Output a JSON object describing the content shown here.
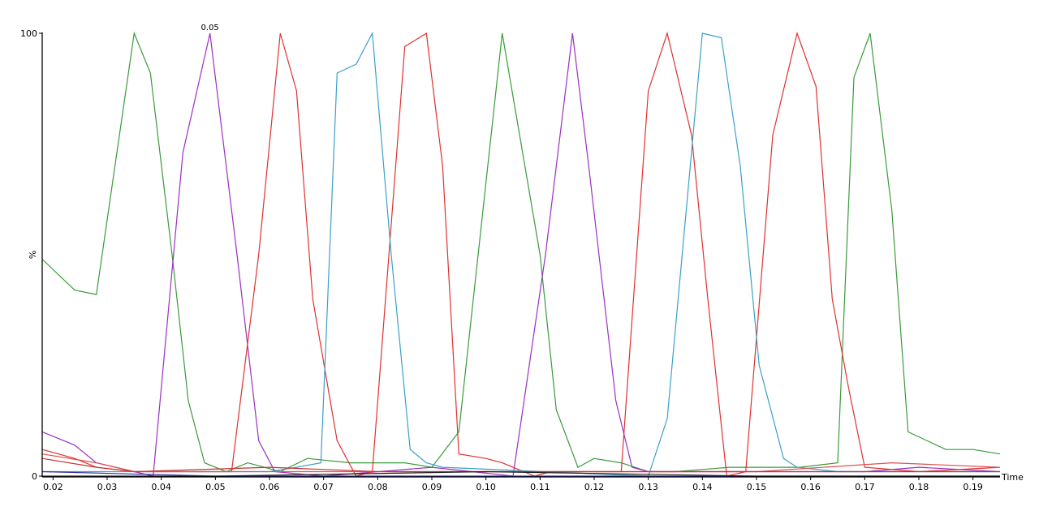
{
  "chart_data": {
    "type": "line",
    "title": "",
    "xlabel": "Time",
    "ylabel": "%",
    "xlim": [
      0.018,
      0.195
    ],
    "ylim": [
      0,
      100
    ],
    "y_ticks": [
      "0",
      "100"
    ],
    "x_ticks": [
      0.02,
      0.03,
      0.04,
      0.05,
      0.06,
      0.07,
      0.08,
      0.09,
      0.1,
      0.11,
      0.12,
      0.13,
      0.14,
      0.15,
      0.16,
      0.17,
      0.18,
      0.19
    ],
    "x_tick_labels": [
      "0.02",
      "0.03",
      "0.04",
      "0.05",
      "0.06",
      "0.07",
      "0.08",
      "0.09",
      "0.10",
      "0.11",
      "0.12",
      "0.13",
      "0.14",
      "0.15",
      "0.16",
      "0.17",
      "0.18",
      "0.19"
    ],
    "grid": false,
    "annotations": [
      {
        "text": "0.05",
        "x": 0.049,
        "y": 100
      }
    ],
    "series": [
      {
        "color": "#3a9a3a",
        "x": [
          0.018,
          0.024,
          0.028,
          0.035,
          0.038,
          0.042,
          0.045,
          0.048,
          0.052,
          0.056,
          0.062,
          0.067,
          0.075,
          0.085,
          0.09,
          0.095,
          0.103,
          0.11,
          0.113,
          0.117,
          0.12,
          0.125,
          0.13,
          0.135,
          0.145,
          0.152,
          0.158,
          0.165,
          0.168,
          0.171,
          0.175,
          0.178,
          0.185,
          0.19,
          0.195
        ],
        "y": [
          49,
          42,
          41,
          100,
          91,
          50,
          17,
          3,
          1,
          3,
          1,
          4,
          3,
          3,
          2,
          10,
          100,
          50,
          15,
          2,
          4,
          3,
          1,
          1,
          2,
          2,
          2,
          3,
          90,
          100,
          60,
          10,
          6,
          6,
          5
        ]
      },
      {
        "color": "#9b30c0",
        "x": [
          0.018,
          0.024,
          0.028,
          0.035,
          0.0385,
          0.044,
          0.049,
          0.054,
          0.058,
          0.061,
          0.07,
          0.09,
          0.105,
          0.111,
          0.116,
          0.119,
          0.124,
          0.127,
          0.13,
          0.15,
          0.17,
          0.18,
          0.195
        ],
        "y": [
          10,
          7,
          3,
          1,
          0,
          73,
          100,
          50,
          8,
          1,
          0,
          2,
          0,
          50,
          100,
          70,
          17,
          2,
          1,
          1,
          1,
          2,
          1
        ]
      },
      {
        "color": "#e03030",
        "x": [
          0.018,
          0.024,
          0.028,
          0.035,
          0.05,
          0.053,
          0.058,
          0.062,
          0.065,
          0.068,
          0.0725,
          0.076,
          0.079,
          0.085,
          0.089,
          0.092,
          0.095,
          0.1,
          0.103,
          0.109,
          0.112,
          0.125,
          0.13,
          0.1335,
          0.138,
          0.141,
          0.1445,
          0.148,
          0.153,
          0.1575,
          0.161,
          0.164,
          0.167,
          0.17,
          0.18,
          0.195
        ],
        "y": [
          6,
          4,
          2,
          1,
          1,
          1,
          50,
          100,
          87,
          40,
          8,
          0,
          1,
          97,
          100,
          70,
          5,
          4,
          3,
          0,
          1,
          1,
          87,
          100,
          77,
          40,
          0,
          1,
          77,
          100,
          88,
          40,
          20,
          2,
          1,
          2
        ]
      },
      {
        "color": "#3aa0c8",
        "x": [
          0.018,
          0.06,
          0.065,
          0.0695,
          0.0725,
          0.076,
          0.079,
          0.0825,
          0.086,
          0.089,
          0.092,
          0.13,
          0.1335,
          0.14,
          0.1435,
          0.147,
          0.1505,
          0.155,
          0.1575,
          0.165,
          0.195
        ],
        "y": [
          1,
          1,
          2,
          3,
          91,
          93,
          100,
          50,
          6,
          3,
          2,
          0,
          13,
          100,
          99,
          70,
          25,
          4,
          2,
          1,
          1
        ]
      },
      {
        "color": "#e05050",
        "x": [
          0.018,
          0.028,
          0.035,
          0.05,
          0.08,
          0.1,
          0.12,
          0.15,
          0.175,
          0.195
        ],
        "y": [
          5,
          3,
          1,
          1,
          1,
          1,
          1,
          1,
          3,
          2
        ]
      },
      {
        "color": "#c83030",
        "x": [
          0.018,
          0.028,
          0.035,
          0.06,
          0.08,
          0.11,
          0.14,
          0.17,
          0.195
        ],
        "y": [
          4,
          2,
          1,
          2,
          1,
          1,
          1,
          1,
          1
        ]
      },
      {
        "color": "#3030a0",
        "x": [
          0.018,
          0.05,
          0.1,
          0.15,
          0.195
        ],
        "y": [
          1,
          0,
          0,
          0,
          0
        ]
      },
      {
        "color": "#202020",
        "x": [
          0.018,
          0.05,
          0.1,
          0.15,
          0.195
        ],
        "y": [
          0,
          0,
          1,
          0,
          0
        ]
      }
    ]
  }
}
